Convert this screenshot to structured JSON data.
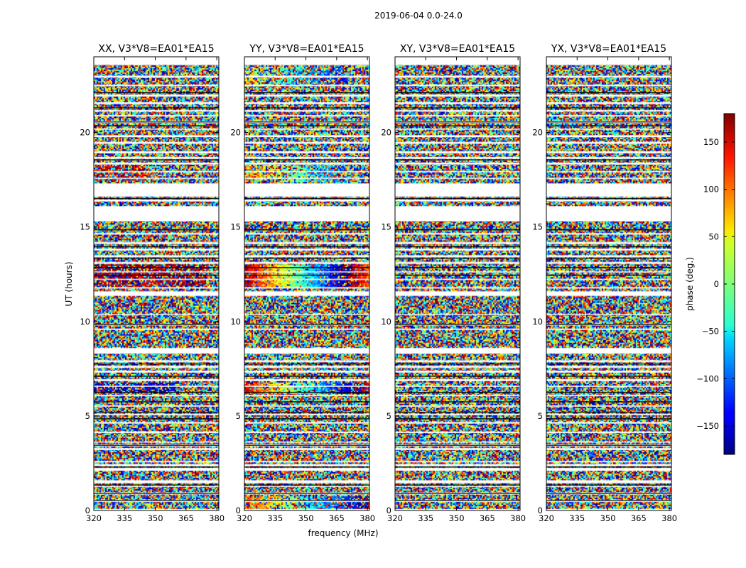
{
  "figure": {
    "suptitle": "2019-06-04 0.0-24.0",
    "xlabel": "frequency (MHz)",
    "ylabel": "UT (hours)"
  },
  "chart_data": {
    "type": "heatmap",
    "title": "2019-06-04 0.0-24.0",
    "xlabel": "frequency (MHz)",
    "ylabel": "UT (hours)",
    "xlim": [
      320,
      381
    ],
    "ylim": [
      0,
      24
    ],
    "x_ticks": [
      320,
      335,
      350,
      365,
      380
    ],
    "y_ticks": [
      0,
      5,
      10,
      15,
      20
    ],
    "colormap": "jet",
    "colorbar": {
      "label": "phase (deg.)",
      "range": [
        -180,
        180
      ],
      "ticks": [
        -150,
        -100,
        -50,
        0,
        50,
        100,
        150
      ],
      "tick_labels": [
        "−150",
        "−100",
        "−50",
        "0",
        "50",
        "100",
        "150"
      ]
    },
    "panels": [
      {
        "title": "XX, V3*V8=EA01*EA15",
        "pol": "XX",
        "coherent_features": [
          {
            "t_start": 11.8,
            "t_end": 13.0,
            "phase_deg": 165,
            "f_max_mhz": 375,
            "strength": 0.55
          },
          {
            "t_start": 6.3,
            "t_end": 6.8,
            "phase_deg": -150,
            "f_max_mhz": 360,
            "strength": 0.5
          },
          {
            "t_start": 17.4,
            "t_end": 18.3,
            "phase_deg": 150,
            "f_max_mhz": 345,
            "strength": 0.3
          }
        ]
      },
      {
        "title": "YY, V3*V8=EA01*EA15",
        "pol": "YY",
        "coherent_features": [
          {
            "t_start": 11.8,
            "t_end": 13.0,
            "phase_deg": 170,
            "slope_deg_per_mhz": -7,
            "f_max_mhz": 381,
            "strength": 0.8
          },
          {
            "t_start": 6.2,
            "t_end": 6.8,
            "phase_deg": 150,
            "slope_deg_per_mhz": -6,
            "f_max_mhz": 381,
            "strength": 0.7
          },
          {
            "t_start": 0.0,
            "t_end": 0.8,
            "phase_deg": 120,
            "slope_deg_per_mhz": -5,
            "f_max_mhz": 381,
            "strength": 0.5
          },
          {
            "t_start": 22.5,
            "t_end": 23.5,
            "phase_deg": 60,
            "slope_deg_per_mhz": -4,
            "f_max_mhz": 370,
            "strength": 0.35
          },
          {
            "t_start": 17.4,
            "t_end": 18.3,
            "phase_deg": 90,
            "slope_deg_per_mhz": -4,
            "f_max_mhz": 370,
            "strength": 0.4
          }
        ]
      },
      {
        "title": "XY, V3*V8=EA01*EA15",
        "pol": "XY",
        "coherent_features": []
      },
      {
        "title": "YX, V3*V8=EA01*EA15",
        "pol": "YX",
        "coherent_features": []
      }
    ],
    "flagged_gaps_hours": [
      [
        0.0,
        0.08
      ],
      [
        0.45,
        0.55
      ],
      [
        0.85,
        0.95
      ],
      [
        1.25,
        1.3
      ],
      [
        1.45,
        1.6
      ],
      [
        2.1,
        2.25
      ],
      [
        2.35,
        2.45
      ],
      [
        2.55,
        2.62
      ],
      [
        3.2,
        3.3
      ],
      [
        3.4,
        3.5
      ],
      [
        3.6,
        3.65
      ],
      [
        4.1,
        4.18
      ],
      [
        4.6,
        4.68
      ],
      [
        5.05,
        5.12
      ],
      [
        5.5,
        5.56
      ],
      [
        6.05,
        6.12
      ],
      [
        6.55,
        6.6
      ],
      [
        6.85,
        6.95
      ],
      [
        7.3,
        7.4
      ],
      [
        7.55,
        7.65
      ],
      [
        7.85,
        7.95
      ],
      [
        8.3,
        8.6
      ],
      [
        9.55,
        9.62
      ],
      [
        9.8,
        9.86
      ],
      [
        10.35,
        10.4
      ],
      [
        11.35,
        11.6
      ],
      [
        11.75,
        11.82
      ],
      [
        12.2,
        12.25
      ],
      [
        12.6,
        12.65
      ],
      [
        13.05,
        13.15
      ],
      [
        13.4,
        13.5
      ],
      [
        13.75,
        13.85
      ],
      [
        14.1,
        14.2
      ],
      [
        14.6,
        14.68
      ],
      [
        15.3,
        16.1
      ],
      [
        16.35,
        16.45
      ],
      [
        16.6,
        17.3
      ],
      [
        17.55,
        17.6
      ],
      [
        17.9,
        17.95
      ],
      [
        18.3,
        18.4
      ],
      [
        18.6,
        18.7
      ],
      [
        18.9,
        19.0
      ],
      [
        19.4,
        19.5
      ],
      [
        19.75,
        19.85
      ],
      [
        20.15,
        20.2
      ],
      [
        20.5,
        20.6
      ],
      [
        20.85,
        20.92
      ],
      [
        21.1,
        21.18
      ],
      [
        21.5,
        21.6
      ],
      [
        21.9,
        22.0
      ],
      [
        22.45,
        22.52
      ],
      [
        22.9,
        23.0
      ],
      [
        23.6,
        23.62
      ],
      [
        23.6,
        24.0
      ]
    ],
    "flag_lines_hours": [
      0.52,
      0.9,
      1.35,
      2.3,
      3.45,
      4.85,
      5.2,
      5.75,
      6.25,
      7.1,
      7.75,
      9.85,
      12.45,
      12.85,
      13.35,
      13.95,
      14.85,
      16.5,
      18.55,
      20.35,
      20.55,
      21.3,
      22.1
    ]
  }
}
